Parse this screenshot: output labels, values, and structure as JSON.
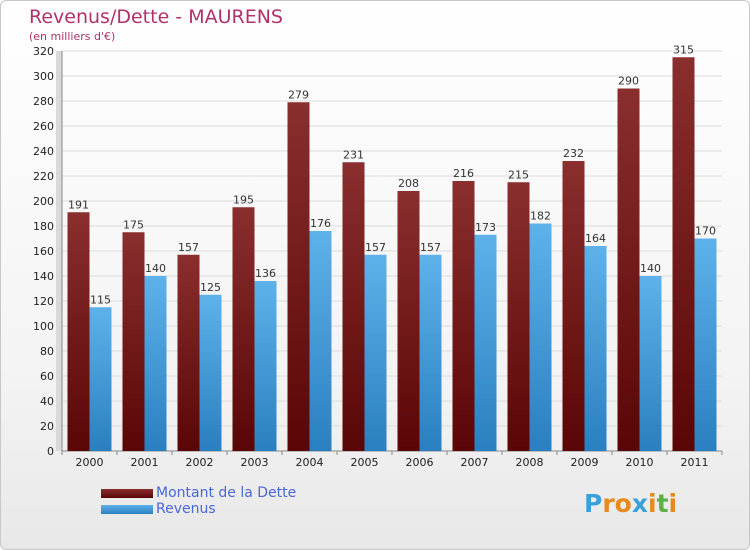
{
  "header": {
    "title": "Revenus/Dette - MAURENS",
    "subtitle": "(en milliers d'€)"
  },
  "colors": {
    "dette": "#7a1a1a",
    "revenus": "#3c9ad6",
    "title": "#b0316b",
    "legend_text": "#4a67d6"
  },
  "chart_data": {
    "type": "bar",
    "title": "Revenus/Dette - MAURENS",
    "ylabel": "(en milliers d'€)",
    "xlabel": "",
    "ylim": [
      0,
      320
    ],
    "yticks": [
      0,
      20,
      40,
      60,
      80,
      100,
      120,
      140,
      160,
      180,
      200,
      220,
      240,
      260,
      280,
      300,
      320
    ],
    "grid": true,
    "legend_position": "bottom-left",
    "categories": [
      "2000",
      "2001",
      "2002",
      "2003",
      "2004",
      "2005",
      "2006",
      "2007",
      "2008",
      "2009",
      "2010",
      "2011"
    ],
    "series": [
      {
        "name": "Montant de la Dette",
        "values": [
          191,
          175,
          157,
          195,
          279,
          231,
          208,
          216,
          215,
          232,
          290,
          315
        ]
      },
      {
        "name": "Revenus",
        "values": [
          115,
          140,
          125,
          136,
          176,
          157,
          157,
          173,
          182,
          164,
          140,
          170
        ]
      }
    ]
  },
  "legend": {
    "items": [
      {
        "label": "Montant de la Dette"
      },
      {
        "label": "Revenus"
      }
    ]
  },
  "logo": {
    "text": "Proxiti",
    "letters": [
      "P",
      "r",
      "o",
      "x",
      "i",
      "t",
      "i"
    ],
    "letter_colors": [
      "#3aa0dc",
      "#e8891c",
      "#e8891c",
      "#3aa0dc",
      "#e8891c",
      "#5fb04a",
      "#e8891c"
    ]
  }
}
